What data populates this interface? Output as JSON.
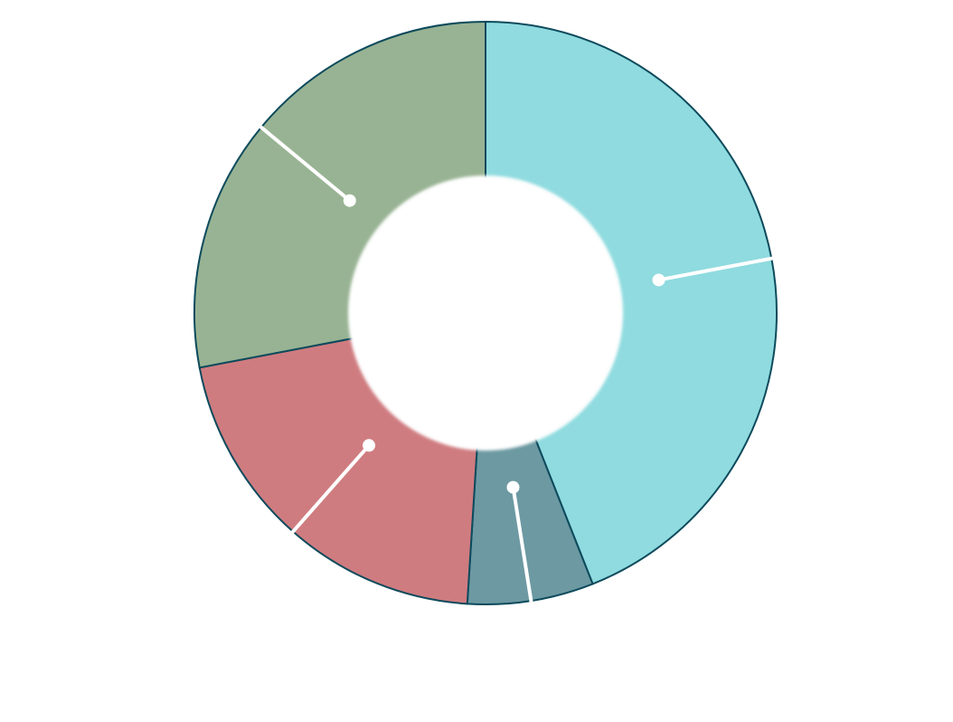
{
  "chart_data": {
    "type": "pie",
    "variant": "donut",
    "start_angle_deg": 0,
    "direction": "clockwise",
    "slices": [
      {
        "value": 44,
        "color": "#8fdbdf"
      },
      {
        "value": 7,
        "color": "#6c99a2"
      },
      {
        "value": 21,
        "color": "#cf7c80"
      },
      {
        "value": 28,
        "color": "#98b393"
      }
    ],
    "border_color": "#0d4a5c",
    "leader_color": "#ffffff",
    "background": "#ffffff",
    "legend": "none",
    "data_labels": "none"
  }
}
